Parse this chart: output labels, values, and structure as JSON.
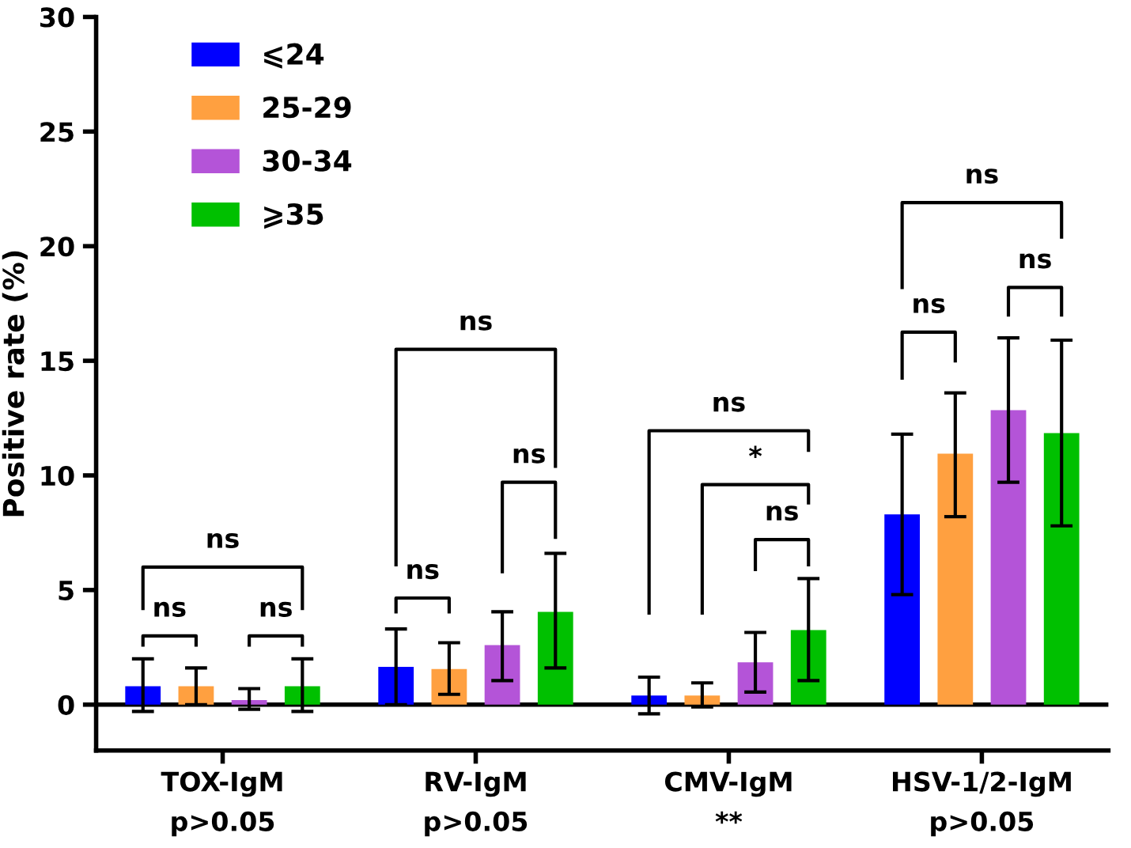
{
  "chart_data": {
    "type": "bar",
    "ylabel": "Positive rate (%)",
    "categories": [
      "TOX-IgM\np>0.05",
      "RV-IgM\np>0.05",
      "CMV-IgM\n**",
      "HSV-1/2-IgM\np>0.05"
    ],
    "series": [
      {
        "name": "⩽24",
        "color": "#0000ff",
        "values": [
          0.8,
          1.65,
          0.4,
          8.3
        ],
        "errors": [
          [
            -0.3,
            2.0
          ],
          [
            0,
            3.3
          ],
          [
            -0.4,
            1.2
          ],
          [
            4.8,
            11.8
          ]
        ]
      },
      {
        "name": "25-29",
        "color": "#ffa040",
        "values": [
          0.8,
          1.55,
          0.4,
          10.95
        ],
        "errors": [
          [
            0,
            1.6
          ],
          [
            0.45,
            2.7
          ],
          [
            -0.1,
            0.95
          ],
          [
            8.2,
            13.6
          ]
        ]
      },
      {
        "name": "30-34",
        "color": "#b454d8",
        "values": [
          0.2,
          2.6,
          1.85,
          12.85
        ],
        "errors": [
          [
            -0.2,
            0.7
          ],
          [
            1.05,
            4.05
          ],
          [
            0.55,
            3.15
          ],
          [
            9.7,
            16.0
          ]
        ]
      },
      {
        "name": "⩾35",
        "color": "#00c000",
        "values": [
          0.8,
          4.05,
          3.25,
          11.85
        ],
        "errors": [
          [
            -0.3,
            2.0
          ],
          [
            1.6,
            6.6
          ],
          [
            1.05,
            5.5
          ],
          [
            7.8,
            15.9
          ]
        ]
      }
    ],
    "ylim": [
      -2,
      30
    ],
    "yticks": [
      0,
      5,
      10,
      15,
      20,
      25,
      30
    ],
    "ref_lines": [
      {
        "axis": "y",
        "value": 0,
        "color": "#000000"
      }
    ],
    "grid": false,
    "legend": "top left",
    "annotations": [
      "ns",
      "ns",
      "ns",
      "ns",
      "ns",
      "ns",
      "ns",
      "*",
      "ns",
      "ns",
      "ns",
      "ns"
    ]
  }
}
